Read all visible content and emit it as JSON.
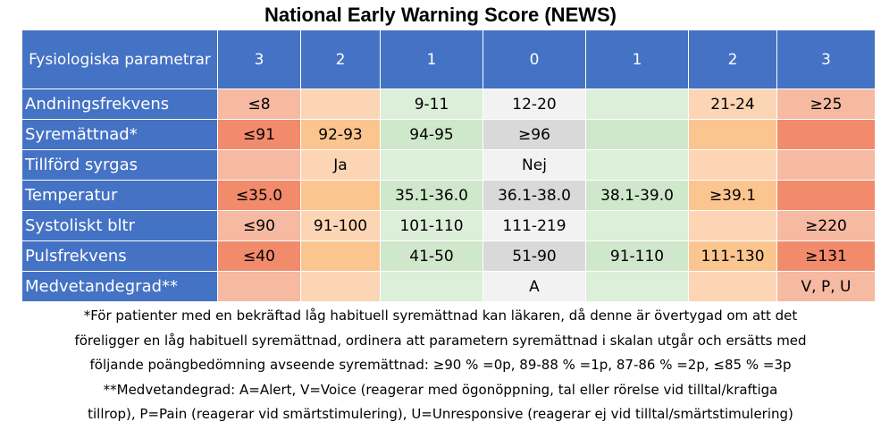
{
  "title": "National Early Warning Score (NEWS)",
  "header": {
    "param_label": "Fysiologiska parametrar",
    "scores": [
      "3",
      "2",
      "1",
      "0",
      "1",
      "2",
      "3"
    ]
  },
  "rows": [
    {
      "label": "Andningsfrekvens",
      "cells": [
        "≤8",
        "",
        "9-11",
        "12-20",
        "",
        "21-24",
        "≥25"
      ]
    },
    {
      "label": "Syremättnad*",
      "cells": [
        "≤91",
        "92-93",
        "94-95",
        "≥96",
        "",
        "",
        ""
      ]
    },
    {
      "label": "Tillförd syrgas",
      "cells": [
        "",
        "Ja",
        "",
        "Nej",
        "",
        "",
        ""
      ]
    },
    {
      "label": "Temperatur",
      "cells": [
        "≤35.0",
        "",
        "35.1-36.0",
        "36.1-38.0",
        "38.1-39.0",
        "≥39.1",
        ""
      ]
    },
    {
      "label": "Systoliskt bltr",
      "cells": [
        "≤90",
        "91-100",
        "101-110",
        "111-219",
        "",
        "",
        "≥220"
      ]
    },
    {
      "label": "Pulsfrekvens",
      "cells": [
        "≤40",
        "",
        "41-50",
        "51-90",
        "91-110",
        "111-130",
        "≥131"
      ]
    },
    {
      "label": "Medvetandegrad**",
      "cells": [
        "",
        "",
        "",
        "A",
        "",
        "",
        "V, P, U"
      ]
    }
  ],
  "footnotes": [
    "*För patienter med en bekräftad låg habituell syremättnad kan läkaren, då denne är övertygad om att det",
    "föreligger en låg habituell syremättnad, ordinera att parametern syremättnad i skalan utgår och ersätts med",
    "följande poängbedömning avseende syremättnad: ≥90 % =0p,  89-88 % =1p,  87-86 % =2p,  ≤85 % =3p",
    "**Medvetandegrad: A=Alert, V=Voice (reagerar med ögonöppning, tal eller rörelse vid tilltal/kraftiga",
    "tillrop), P=Pain (reagerar vid smärtstimulering), U=Unresponsive (reagerar ej vid tilltal/smärtstimulering)"
  ],
  "colors": {
    "header_blue": "#4472c4",
    "score_3": "#f28a6c",
    "score_2": "#fbc58f",
    "score_1": "#dcefd9",
    "score_0": "#f2f2f2"
  }
}
